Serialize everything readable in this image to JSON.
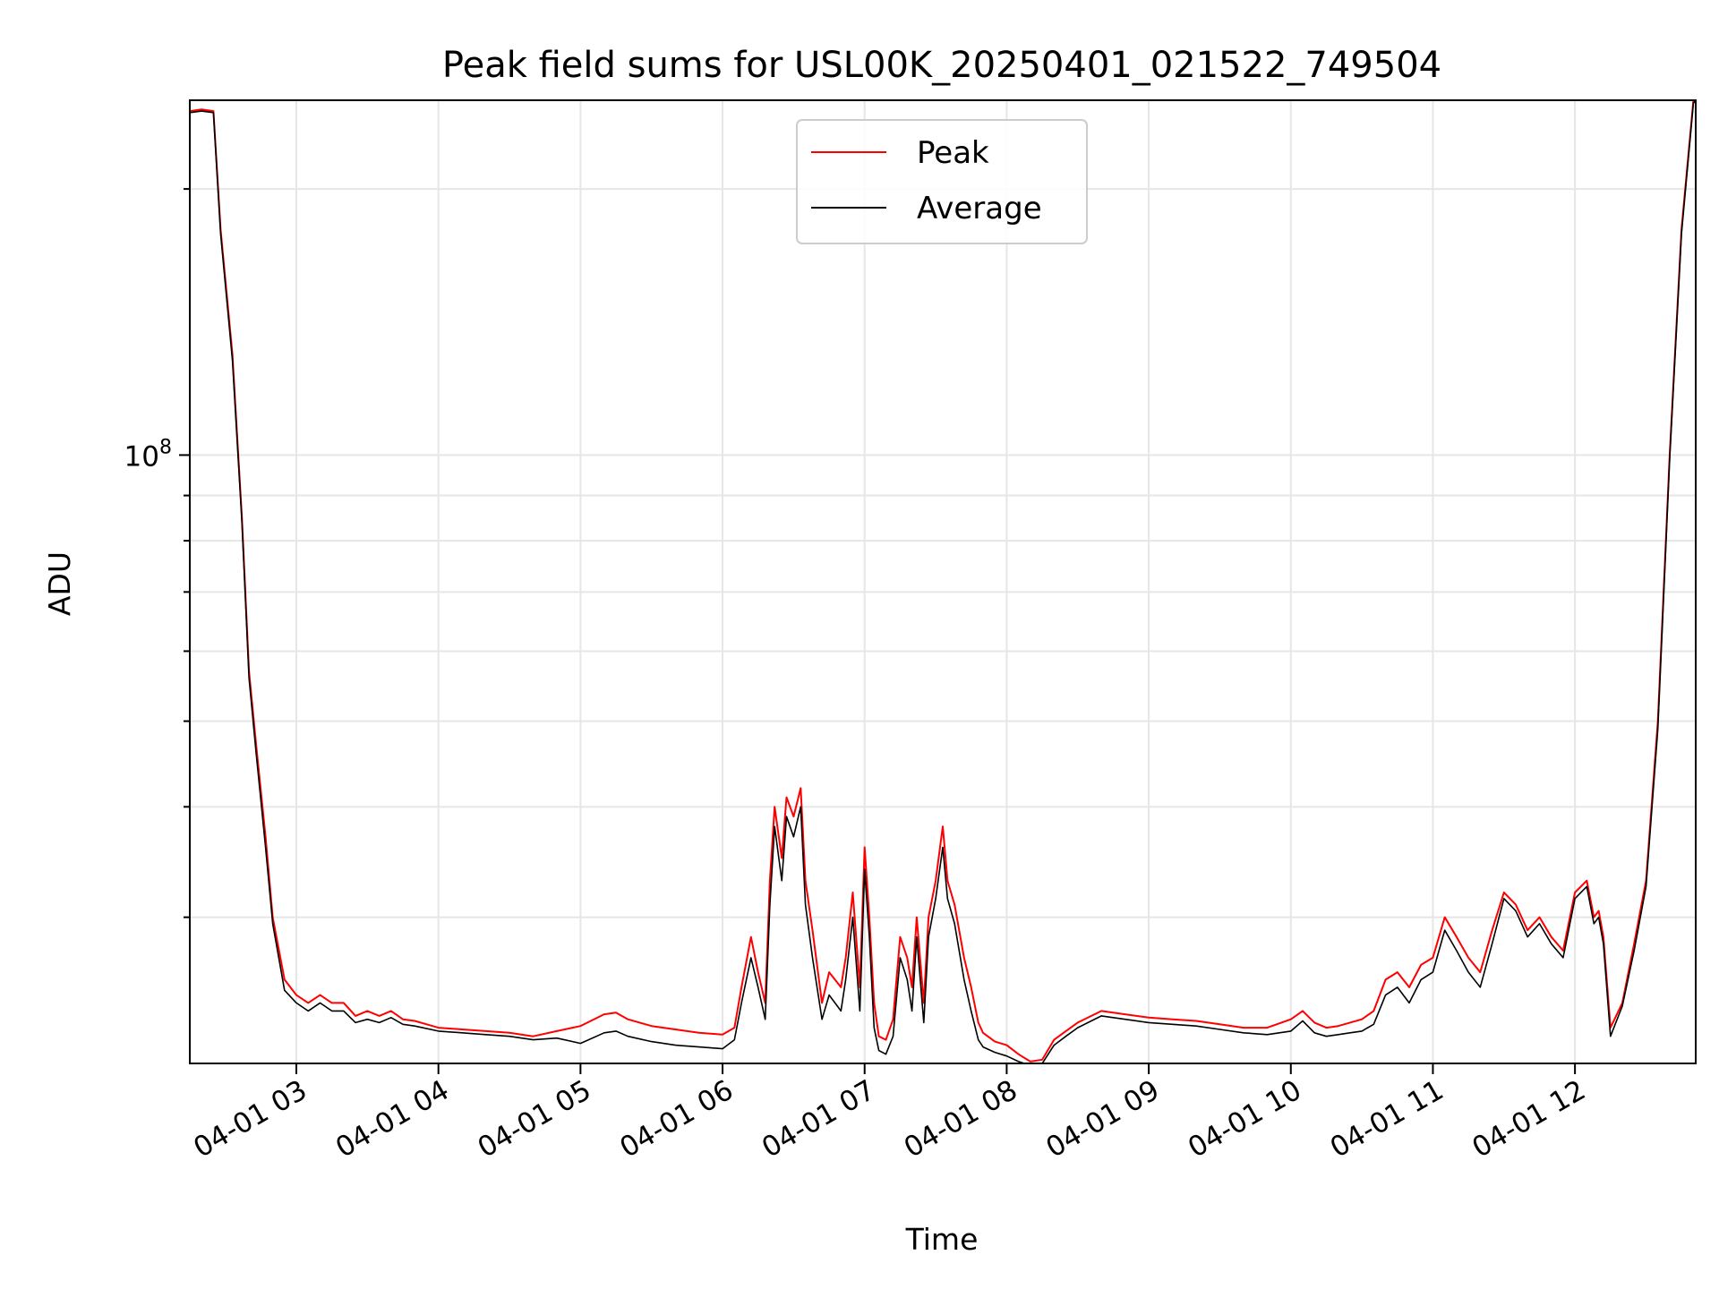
{
  "chart_data": {
    "type": "line",
    "title": "Peak field sums for USL00K_20250401_021522_749504",
    "xlabel": "Time",
    "ylabel": "ADU",
    "yscale": "log",
    "ylim": [
      20500000,
      252000000
    ],
    "xlim": [
      "2025-04-01 02:15",
      "2025-04-01 12:51"
    ],
    "grid": true,
    "legend": "top-center",
    "x_ticks": [
      "04-01 03",
      "04-01 04",
      "04-01 05",
      "04-01 06",
      "04-01 07",
      "04-01 08",
      "04-01 09",
      "04-01 10",
      "04-01 11",
      "04-01 12"
    ],
    "y_major_ticks": [
      {
        "value": 100000000,
        "base": "10",
        "exp": "8"
      }
    ],
    "y_minor_ticks": [
      30000000,
      40000000,
      50000000,
      60000000,
      70000000,
      80000000,
      90000000,
      200000000
    ],
    "series": [
      {
        "name": "Peak",
        "color": "#ff0000",
        "x": [
          "02:15",
          "02:20",
          "02:25",
          "02:28",
          "02:33",
          "02:37",
          "02:40",
          "02:43",
          "02:47",
          "02:50",
          "02:55",
          "03:00",
          "03:05",
          "03:10",
          "03:15",
          "03:20",
          "03:25",
          "03:30",
          "03:35",
          "03:40",
          "03:45",
          "03:50",
          "04:00",
          "04:10",
          "04:20",
          "04:30",
          "04:40",
          "04:50",
          "05:00",
          "05:10",
          "05:15",
          "05:20",
          "05:30",
          "05:40",
          "05:50",
          "06:00",
          "06:05",
          "06:08",
          "06:12",
          "06:15",
          "06:18",
          "06:20",
          "06:22",
          "06:25",
          "06:27",
          "06:30",
          "06:33",
          "06:35",
          "06:38",
          "06:42",
          "06:45",
          "06:50",
          "06:52",
          "06:55",
          "06:58",
          "07:00",
          "07:02",
          "07:04",
          "07:06",
          "07:09",
          "07:12",
          "07:15",
          "07:18",
          "07:20",
          "07:22",
          "07:25",
          "07:27",
          "07:30",
          "07:33",
          "07:35",
          "07:38",
          "07:42",
          "07:45",
          "07:48",
          "07:50",
          "07:55",
          "08:00",
          "08:05",
          "08:10",
          "08:15",
          "08:20",
          "08:25",
          "08:30",
          "08:40",
          "08:50",
          "09:00",
          "09:10",
          "09:20",
          "09:30",
          "09:40",
          "09:50",
          "10:00",
          "10:05",
          "10:10",
          "10:15",
          "10:20",
          "10:25",
          "10:30",
          "10:35",
          "10:40",
          "10:45",
          "10:50",
          "10:55",
          "11:00",
          "11:05",
          "11:10",
          "11:15",
          "11:20",
          "11:25",
          "11:30",
          "11:35",
          "11:40",
          "11:45",
          "11:50",
          "11:55",
          "12:00",
          "12:05",
          "12:08",
          "12:10",
          "12:12",
          "12:15",
          "12:20",
          "12:25",
          "12:30",
          "12:35",
          "12:40",
          "12:45",
          "12:50",
          "12:51"
        ],
        "values": [
          245000000,
          246000000,
          245000000,
          180000000,
          130000000,
          85000000,
          57000000,
          47000000,
          37000000,
          30000000,
          25500000,
          24500000,
          24000000,
          24500000,
          24000000,
          24000000,
          23200000,
          23500000,
          23200000,
          23500000,
          23000000,
          22900000,
          22500000,
          22400000,
          22300000,
          22200000,
          22000000,
          22300000,
          22600000,
          23300000,
          23400000,
          23000000,
          22600000,
          22400000,
          22200000,
          22100000,
          22500000,
          25000000,
          28500000,
          26000000,
          24000000,
          33000000,
          40000000,
          35000000,
          41000000,
          39000000,
          42000000,
          33000000,
          29000000,
          24000000,
          26000000,
          25000000,
          27000000,
          32000000,
          25000000,
          36000000,
          30000000,
          24000000,
          22000000,
          21800000,
          23000000,
          28500000,
          27000000,
          25000000,
          30000000,
          24000000,
          30000000,
          33000000,
          38000000,
          33000000,
          31000000,
          27000000,
          25000000,
          22800000,
          22200000,
          21700000,
          21500000,
          21000000,
          20600000,
          20700000,
          21800000,
          22300000,
          22800000,
          23500000,
          23300000,
          23100000,
          23000000,
          22900000,
          22700000,
          22500000,
          22500000,
          23000000,
          23500000,
          22800000,
          22500000,
          22600000,
          22800000,
          23000000,
          23500000,
          25500000,
          26000000,
          25000000,
          26500000,
          27000000,
          30000000,
          28500000,
          27000000,
          26000000,
          29000000,
          32000000,
          31000000,
          29000000,
          30000000,
          28500000,
          27500000,
          32000000,
          33000000,
          30000000,
          30500000,
          28500000,
          22500000,
          24000000,
          28000000,
          33000000,
          50000000,
          100000000,
          180000000,
          252000000,
          252000000
        ]
      },
      {
        "name": "Average",
        "color": "#000000",
        "x": [
          "02:15",
          "02:20",
          "02:25",
          "02:28",
          "02:33",
          "02:37",
          "02:40",
          "02:43",
          "02:47",
          "02:50",
          "02:55",
          "03:00",
          "03:05",
          "03:10",
          "03:15",
          "03:20",
          "03:25",
          "03:30",
          "03:35",
          "03:40",
          "03:45",
          "03:50",
          "04:00",
          "04:10",
          "04:20",
          "04:30",
          "04:40",
          "04:50",
          "05:00",
          "05:10",
          "05:15",
          "05:20",
          "05:30",
          "05:40",
          "05:50",
          "06:00",
          "06:05",
          "06:08",
          "06:12",
          "06:15",
          "06:18",
          "06:20",
          "06:22",
          "06:25",
          "06:27",
          "06:30",
          "06:33",
          "06:35",
          "06:38",
          "06:42",
          "06:45",
          "06:50",
          "06:52",
          "06:55",
          "06:58",
          "07:00",
          "07:02",
          "07:04",
          "07:06",
          "07:09",
          "07:12",
          "07:15",
          "07:18",
          "07:20",
          "07:22",
          "07:25",
          "07:27",
          "07:30",
          "07:33",
          "07:35",
          "07:38",
          "07:42",
          "07:45",
          "07:48",
          "07:50",
          "07:55",
          "08:00",
          "08:05",
          "08:10",
          "08:15",
          "08:20",
          "08:25",
          "08:30",
          "08:40",
          "08:50",
          "09:00",
          "09:10",
          "09:20",
          "09:30",
          "09:40",
          "09:50",
          "10:00",
          "10:05",
          "10:10",
          "10:15",
          "10:20",
          "10:25",
          "10:30",
          "10:35",
          "10:40",
          "10:45",
          "10:50",
          "10:55",
          "11:00",
          "11:05",
          "11:10",
          "11:15",
          "11:20",
          "11:25",
          "11:30",
          "11:35",
          "11:40",
          "11:45",
          "11:50",
          "11:55",
          "12:00",
          "12:05",
          "12:08",
          "12:10",
          "12:12",
          "12:15",
          "12:20",
          "12:25",
          "12:30",
          "12:35",
          "12:40",
          "12:45",
          "12:50",
          "12:51"
        ],
        "values": [
          244000000,
          245000000,
          244000000,
          178000000,
          128000000,
          84000000,
          56000000,
          46000000,
          36000000,
          29500000,
          24800000,
          24000000,
          23500000,
          24000000,
          23500000,
          23500000,
          22800000,
          23000000,
          22800000,
          23100000,
          22700000,
          22600000,
          22300000,
          22200000,
          22100000,
          22000000,
          21800000,
          21900000,
          21600000,
          22200000,
          22300000,
          22000000,
          21700000,
          21500000,
          21400000,
          21300000,
          21800000,
          24000000,
          27000000,
          25000000,
          23000000,
          31000000,
          38000000,
          33000000,
          39000000,
          37000000,
          40000000,
          31000000,
          27000000,
          23000000,
          24500000,
          23500000,
          25500000,
          30000000,
          23500000,
          34000000,
          28500000,
          22500000,
          21200000,
          21000000,
          22000000,
          27000000,
          25500000,
          23500000,
          28500000,
          22800000,
          28500000,
          31500000,
          36000000,
          31500000,
          29500000,
          25500000,
          23500000,
          21800000,
          21400000,
          21100000,
          20900000,
          20600000,
          20400000,
          20500000,
          21500000,
          22000000,
          22500000,
          23200000,
          23000000,
          22800000,
          22700000,
          22600000,
          22400000,
          22200000,
          22100000,
          22300000,
          22900000,
          22200000,
          22000000,
          22100000,
          22200000,
          22300000,
          22700000,
          24500000,
          25000000,
          24000000,
          25500000,
          26000000,
          29000000,
          27500000,
          26000000,
          25000000,
          28000000,
          31500000,
          30500000,
          28500000,
          29500000,
          28000000,
          27000000,
          31500000,
          32500000,
          29500000,
          30000000,
          28000000,
          22000000,
          23800000,
          27500000,
          32500000,
          49000000,
          99000000,
          178000000,
          250000000,
          252000000
        ]
      }
    ]
  }
}
